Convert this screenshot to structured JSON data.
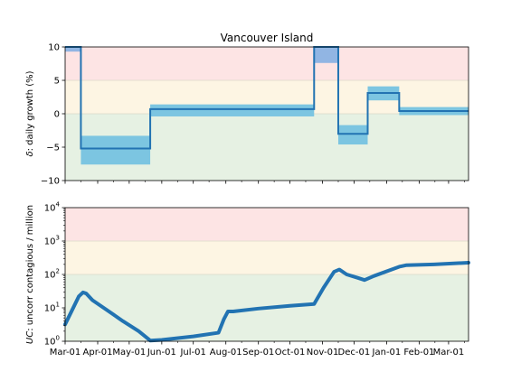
{
  "chart_data": [
    {
      "type": "line",
      "title": "Vancouver Island",
      "ylabel": "δ: daily growth (%)",
      "ylabel_symbol": "δ",
      "ylabel_text": ": daily growth (%)",
      "ylim": [
        -10,
        10
      ],
      "yticks": [
        10,
        5,
        0,
        -5,
        -10
      ],
      "ytick_labels": [
        "10",
        "5",
        "0",
        "−5",
        "−10"
      ],
      "xlim": [
        "2020-03-01",
        "2021-03-20"
      ],
      "background_bands": [
        {
          "from": 5,
          "to": 10,
          "color": "#fde4e4"
        },
        {
          "from": 0,
          "to": 5,
          "color": "#fdf5e3"
        },
        {
          "from": -10,
          "to": 0,
          "color": "#e6f1e3"
        }
      ],
      "series": [
        {
          "kind": "step",
          "color": "#2273b2",
          "points": [
            {
              "start": "2020-03-01",
              "end": "2020-03-16",
              "value": 10.0,
              "lo": 9.3,
              "hi": 10.0
            },
            {
              "start": "2020-03-16",
              "end": "2020-05-21",
              "value": -5.2,
              "lo": -7.6,
              "hi": -3.3
            },
            {
              "start": "2020-05-21",
              "end": "2020-10-24",
              "value": 0.7,
              "lo": -0.4,
              "hi": 1.4
            },
            {
              "start": "2020-10-24",
              "end": "2020-11-16",
              "value": 10.0,
              "lo": 7.6,
              "hi": 10.0
            },
            {
              "start": "2020-11-16",
              "end": "2020-12-14",
              "value": -3.0,
              "lo": -4.6,
              "hi": -1.7
            },
            {
              "start": "2020-12-14",
              "end": "2021-01-13",
              "value": 3.1,
              "lo": 2.0,
              "hi": 4.1
            },
            {
              "start": "2021-01-13",
              "end": "2021-03-20",
              "value": 0.4,
              "lo": -0.2,
              "hi": 1.0
            }
          ]
        }
      ]
    },
    {
      "type": "line",
      "ylabel": "UC: uncorr contagious / million",
      "ylabel_symbol": "UC",
      "ylabel_text": ": uncorr contagious / million",
      "yscale": "log",
      "ylim": [
        1,
        10000
      ],
      "yticks": [
        1,
        10,
        100,
        1000,
        10000
      ],
      "ytick_labels": [
        {
          "b": "10",
          "e": "0"
        },
        {
          "b": "10",
          "e": "1"
        },
        {
          "b": "10",
          "e": "2"
        },
        {
          "b": "10",
          "e": "3"
        },
        {
          "b": "10",
          "e": "4"
        }
      ],
      "xlim": [
        "2020-03-01",
        "2021-03-20"
      ],
      "background_bands": [
        {
          "from": 1000,
          "to": 10000,
          "color": "#fde4e4"
        },
        {
          "from": 100,
          "to": 1000,
          "color": "#fdf5e3"
        },
        {
          "from": 1,
          "to": 100,
          "color": "#e6f1e3"
        }
      ],
      "series": [
        {
          "kind": "line",
          "color": "#2273b2",
          "points": [
            {
              "x": "2020-03-01",
              "y": 3.2
            },
            {
              "x": "2020-03-08",
              "y": 9.0
            },
            {
              "x": "2020-03-14",
              "y": 22
            },
            {
              "x": "2020-03-18",
              "y": 29
            },
            {
              "x": "2020-03-21",
              "y": 27
            },
            {
              "x": "2020-03-27",
              "y": 17
            },
            {
              "x": "2020-04-10",
              "y": 8.5
            },
            {
              "x": "2020-04-25",
              "y": 4.0
            },
            {
              "x": "2020-05-10",
              "y": 2.0
            },
            {
              "x": "2020-05-21",
              "y": 1.05
            },
            {
              "x": "2020-06-01",
              "y": 1.1
            },
            {
              "x": "2020-07-01",
              "y": 1.4
            },
            {
              "x": "2020-07-25",
              "y": 1.8
            },
            {
              "x": "2020-07-30",
              "y": 4.5
            },
            {
              "x": "2020-08-03",
              "y": 7.8
            },
            {
              "x": "2020-08-08",
              "y": 7.8
            },
            {
              "x": "2020-09-01",
              "y": 9.5
            },
            {
              "x": "2020-10-01",
              "y": 11.5
            },
            {
              "x": "2020-10-24",
              "y": 13
            },
            {
              "x": "2020-11-02",
              "y": 40
            },
            {
              "x": "2020-11-12",
              "y": 120
            },
            {
              "x": "2020-11-17",
              "y": 140
            },
            {
              "x": "2020-11-24",
              "y": 100
            },
            {
              "x": "2020-12-04",
              "y": 80
            },
            {
              "x": "2020-12-11",
              "y": 68
            },
            {
              "x": "2020-12-20",
              "y": 90
            },
            {
              "x": "2021-01-13",
              "y": 170
            },
            {
              "x": "2021-01-20",
              "y": 190
            },
            {
              "x": "2021-02-15",
              "y": 200
            },
            {
              "x": "2021-03-20",
              "y": 225
            }
          ]
        }
      ]
    }
  ],
  "x_ticks": [
    {
      "date": "2020-03-01",
      "label": "Mar-01"
    },
    {
      "date": "2020-04-01",
      "label": "Apr-01"
    },
    {
      "date": "2020-05-01",
      "label": "May-01"
    },
    {
      "date": "2020-06-01",
      "label": "Jun-01"
    },
    {
      "date": "2020-07-01",
      "label": "Jul-01"
    },
    {
      "date": "2020-08-01",
      "label": "Aug-01"
    },
    {
      "date": "2020-09-01",
      "label": "Sep-01"
    },
    {
      "date": "2020-10-01",
      "label": "Oct-01"
    },
    {
      "date": "2020-11-01",
      "label": "Nov-01"
    },
    {
      "date": "2020-12-01",
      "label": "Dec-01"
    },
    {
      "date": "2021-01-01",
      "label": "Jan-01"
    },
    {
      "date": "2021-02-01",
      "label": "Feb-01"
    },
    {
      "date": "2021-03-01",
      "label": "Mar-01"
    }
  ],
  "colors": {
    "line": "#2273b2",
    "ci_fill_negative": "#7cc5e1",
    "ci_fill_positive": "#91b5e3"
  }
}
